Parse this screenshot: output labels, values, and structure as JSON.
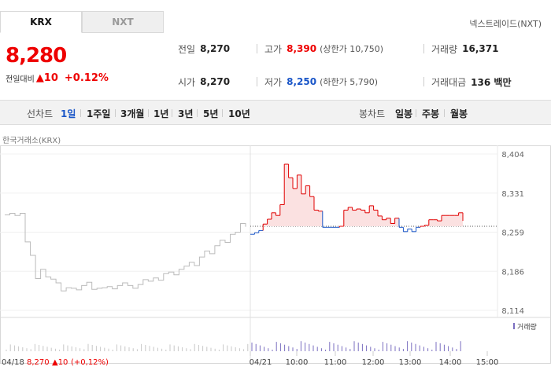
{
  "tabs": [
    {
      "label": "KRX",
      "active": true
    },
    {
      "label": "NXT",
      "active": false
    }
  ],
  "nxt_link": "넥스트레이드(NXT)",
  "quote": {
    "price": "8,280",
    "change_label": "전일대비",
    "change_value": "▲10",
    "change_pct": "+0.12%"
  },
  "stats": {
    "prev_close": {
      "label": "전일",
      "value": "8,270"
    },
    "high": {
      "label": "고가",
      "value": "8,390",
      "sub": "(상한가 10,750)"
    },
    "volume": {
      "label": "거래량",
      "value": "16,371"
    },
    "open": {
      "label": "시가",
      "value": "8,270"
    },
    "low": {
      "label": "저가",
      "value": "8,250",
      "sub": "(하한가 5,790)"
    },
    "amount": {
      "label": "거래대금",
      "value": "136 백만"
    }
  },
  "periodbar": {
    "line_label": "선차트",
    "line_items": [
      "1일",
      "1주일",
      "3개월",
      "1년",
      "3년",
      "5년",
      "10년"
    ],
    "selected": "1일",
    "candle_label": "봉차트",
    "candle_items": [
      "일봉",
      "주봉",
      "월봉"
    ]
  },
  "chart_caption": "한국거래소(KRX)",
  "colors": {
    "up": "#e00000",
    "down": "#1a56c8",
    "accent": "#1a56c8"
  },
  "chart_data": {
    "type": "line",
    "y_ticks": [
      "8,404",
      "8,331",
      "8,259",
      "8,186",
      "8,114"
    ],
    "ylim": [
      8114,
      8404
    ],
    "x_ticks": [
      "04/21",
      "10:00",
      "11:00",
      "12:00",
      "13:00",
      "14:00",
      "15:00"
    ],
    "prev_day_label": "04/18",
    "prev_close": 8270,
    "prev_day_series": [
      8291,
      8294,
      8290,
      8294,
      8241,
      8216,
      8173,
      8190,
      8176,
      8172,
      8165,
      8150,
      8156,
      8155,
      8152,
      8160,
      8166,
      8153,
      8155,
      8156,
      8158,
      8154,
      8160,
      8165,
      8160,
      8155,
      8162,
      8171,
      8168,
      8174,
      8170,
      8182,
      8185,
      8180,
      8190,
      8196,
      8203,
      8197,
      8213,
      8224,
      8219,
      8234,
      8244,
      8240,
      8255,
      8259,
      8275,
      8269
    ],
    "today_series": [
      8255,
      8258,
      8262,
      8274,
      8283,
      8295,
      8290,
      8310,
      8385,
      8360,
      8340,
      8365,
      8330,
      8345,
      8325,
      8300,
      8298,
      8268,
      8268,
      8268,
      8268,
      8270,
      8300,
      8305,
      8300,
      8302,
      8300,
      8295,
      8308,
      8300,
      8289,
      8282,
      8285,
      8275,
      8285,
      8268,
      8260,
      8265,
      8260,
      8268,
      8270,
      8272,
      8282,
      8282,
      8280,
      8290,
      8290,
      8290,
      8290,
      8295,
      8280
    ],
    "volume_label": "거래량",
    "bottom_info": {
      "date": "04/18",
      "price": "8,270",
      "change": "▲10",
      "pct": "(+0,12%)"
    }
  }
}
